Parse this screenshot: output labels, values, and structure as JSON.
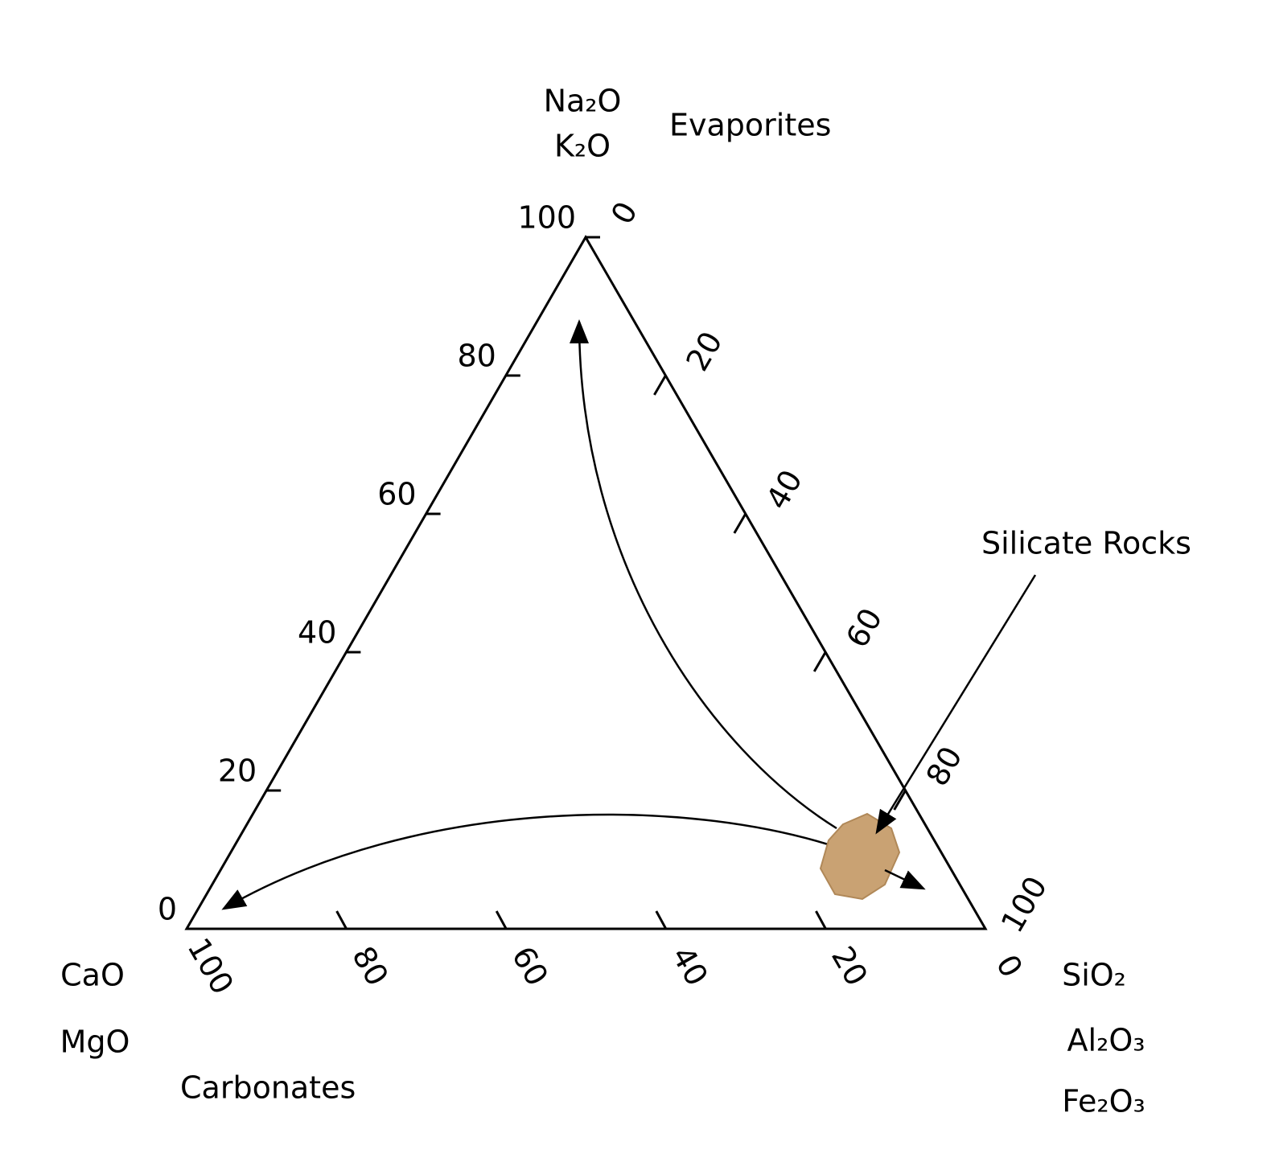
{
  "diagram": {
    "apexes": {
      "top": {
        "labels": [
          "Na₂O",
          "K₂O"
        ],
        "group": "Evaporites"
      },
      "left": {
        "labels": [
          "CaO",
          "MgO"
        ],
        "group": "Carbonates"
      },
      "right": {
        "labels": [
          "SiO₂",
          "Al₂O₃",
          "Fe₂O₃"
        ]
      }
    },
    "axes": {
      "left": [
        0,
        20,
        40,
        60,
        80,
        100
      ],
      "right": [
        0,
        20,
        40,
        60,
        80,
        100
      ],
      "bottom": [
        0,
        20,
        40,
        60,
        80,
        100
      ]
    },
    "annotation": "Silicate Rocks"
  }
}
